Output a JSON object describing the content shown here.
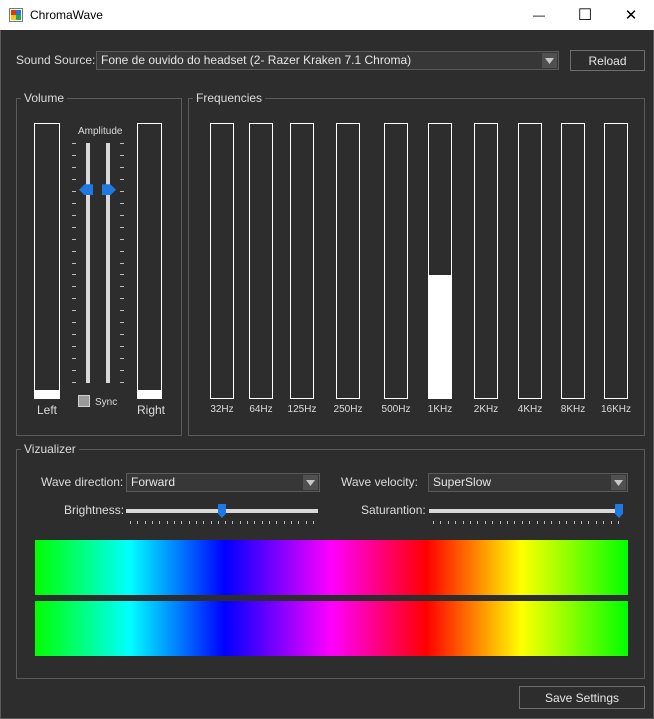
{
  "window": {
    "title": "ChromaWave",
    "minimize_glyph": "—",
    "maximize_glyph": "☐",
    "close_glyph": "✕"
  },
  "sound_source": {
    "label": "Sound Source:",
    "value": "Fone de ouvido do headset (2- Razer Kraken 7.1 Chroma)",
    "reload_label": "Reload"
  },
  "volume": {
    "title": "Volume",
    "amplitude_label": "Amplitude",
    "left_label": "Left",
    "right_label": "Right",
    "sync_label": "Sync",
    "sync_checked": false,
    "left_level": 0.03,
    "right_level": 0.03,
    "amplitude_value": 0.82
  },
  "frequencies": {
    "title": "Frequencies",
    "bands": [
      {
        "label": "32Hz",
        "level": 0
      },
      {
        "label": "64Hz",
        "level": 0
      },
      {
        "label": "125Hz",
        "level": 0
      },
      {
        "label": "250Hz",
        "level": 0
      },
      {
        "label": "500Hz",
        "level": 0
      },
      {
        "label": "1KHz",
        "level": 0.45
      },
      {
        "label": "2KHz",
        "level": 0
      },
      {
        "label": "4KHz",
        "level": 0
      },
      {
        "label": "8KHz",
        "level": 0
      },
      {
        "label": "16KHz",
        "level": 0
      }
    ]
  },
  "visualizer": {
    "title": "Vizualizer",
    "wave_direction_label": "Wave direction:",
    "wave_direction_value": "Forward",
    "wave_velocity_label": "Wave velocity:",
    "wave_velocity_value": "SuperSlow",
    "brightness_label": "Brightness:",
    "brightness_value": 0.5,
    "saturation_label": "Saturantion:",
    "saturation_value": 1.0
  },
  "save_label": "Save Settings",
  "colors": {
    "background": "#2d2d2d",
    "border": "#5a5a5a",
    "accent": "#1e7ae0",
    "meter_fill": "#ffffff"
  }
}
